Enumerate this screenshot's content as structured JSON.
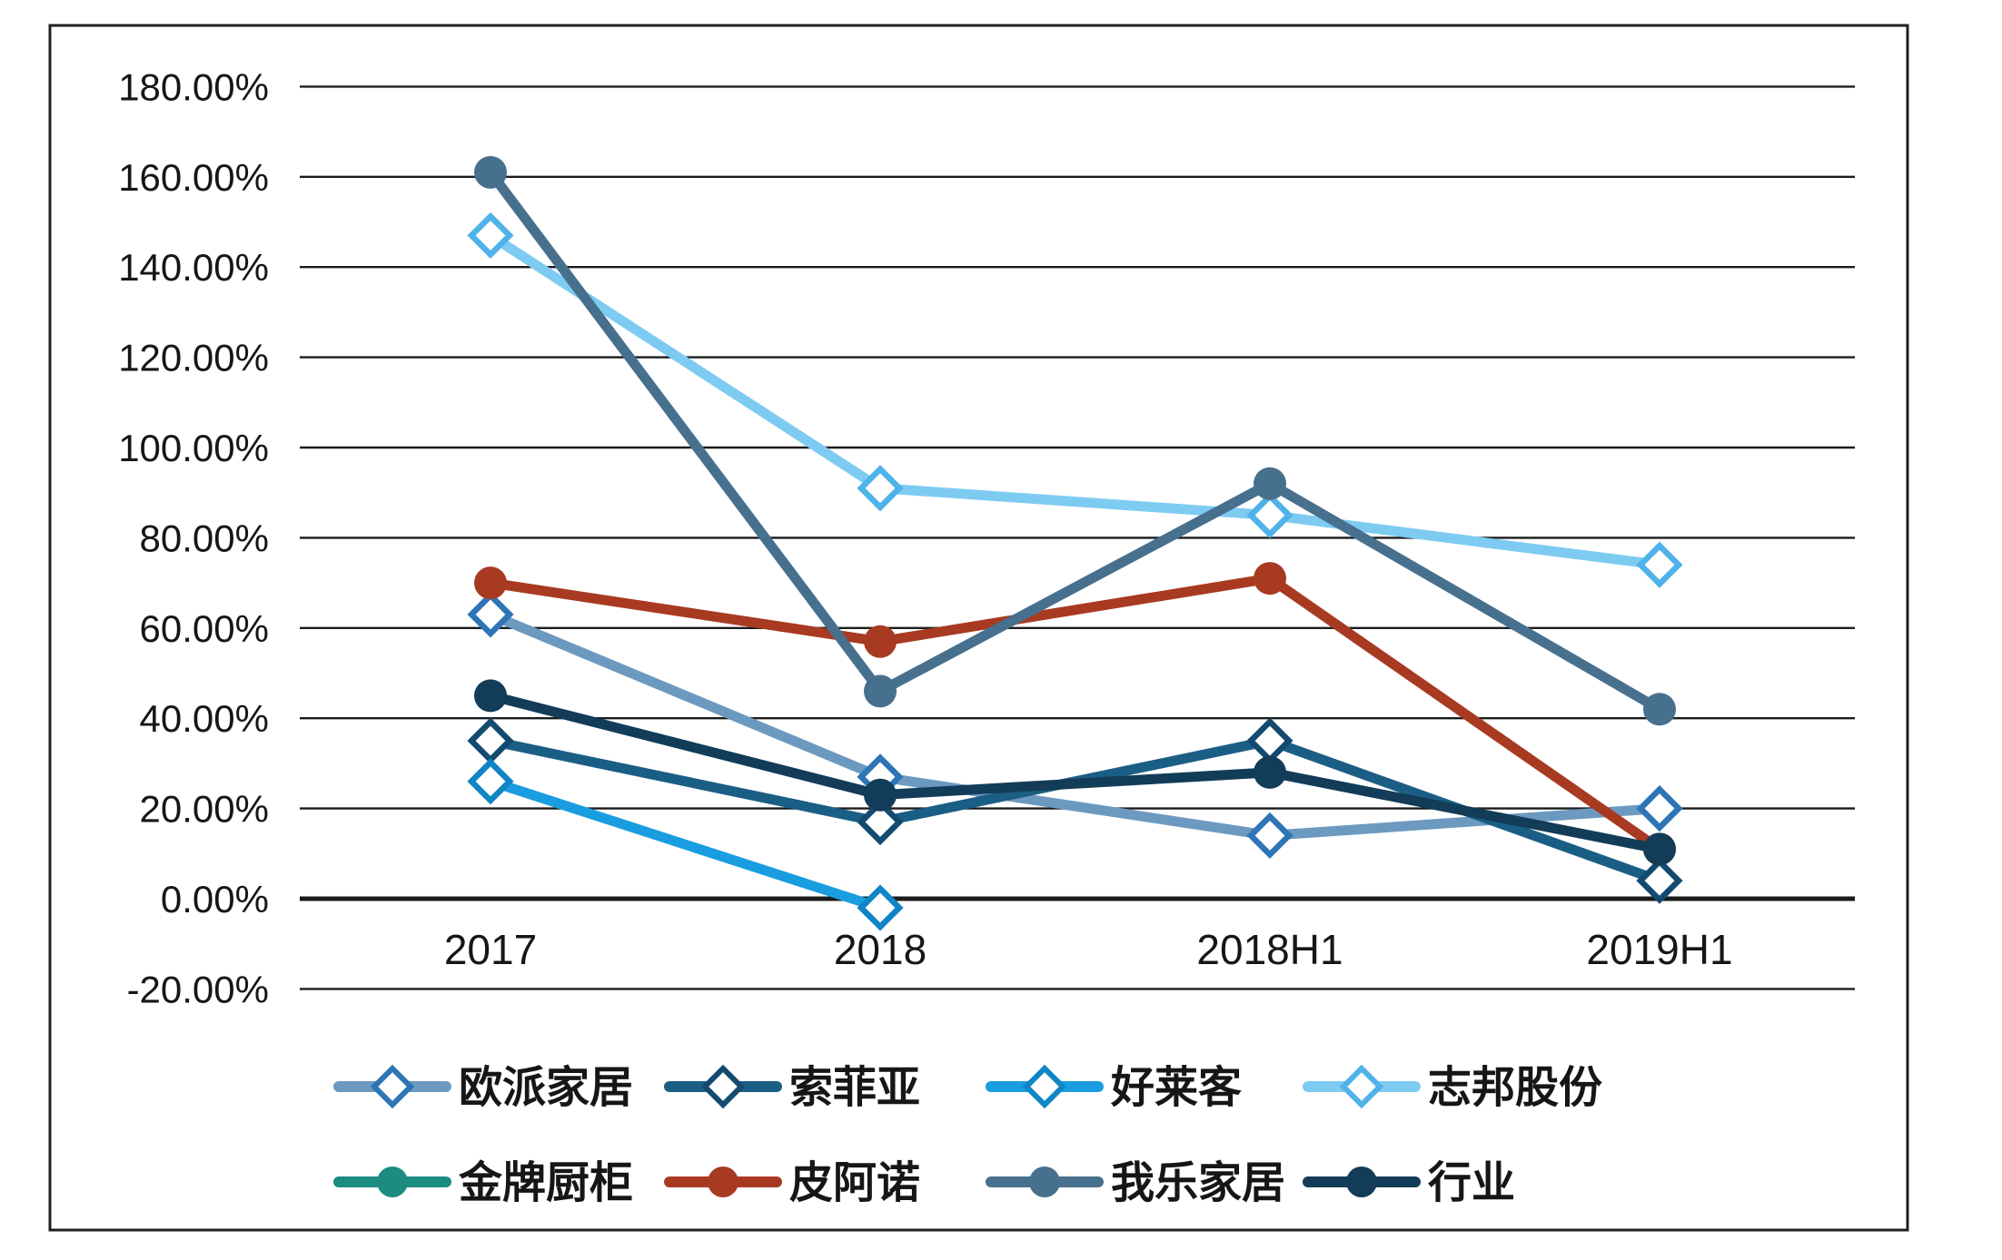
{
  "chart_data": {
    "type": "line",
    "title": "",
    "categories": [
      "2017",
      "2018",
      "2018H1",
      "2019H1"
    ],
    "y_axis": {
      "tick_labels": [
        "180.00%",
        "160.00%",
        "140.00%",
        "120.00%",
        "100.00%",
        "80.00%",
        "60.00%",
        "40.00%",
        "20.00%",
        "0.00%",
        "-20.00%"
      ],
      "tick_values": [
        180,
        160,
        140,
        120,
        100,
        80,
        60,
        40,
        20,
        0,
        -20
      ],
      "ylim": [
        -20,
        180
      ],
      "unit": "%"
    },
    "grid": true,
    "legend_position": "bottom",
    "series": [
      {
        "id": "oppein",
        "name": "欧派家居",
        "marker": "diamond",
        "color": "#6C99C0",
        "marker_stroke": "#2E75B6",
        "values": [
          63,
          27,
          14,
          20
        ]
      },
      {
        "id": "suofeiya",
        "name": "索菲亚",
        "marker": "diamond",
        "color": "#1B5E85",
        "marker_stroke": "#134B70",
        "values": [
          35,
          17,
          35,
          4
        ]
      },
      {
        "id": "holike",
        "name": "好莱客",
        "marker": "diamond",
        "color": "#199DE0",
        "marker_stroke": "#0F85C6",
        "values": [
          26,
          -2,
          null,
          null
        ]
      },
      {
        "id": "zbom",
        "name": "志邦股份",
        "marker": "diamond",
        "color": "#7ECBF2",
        "marker_stroke": "#4FB2E8",
        "values": [
          147,
          91,
          85,
          74
        ]
      },
      {
        "id": "goldhome",
        "name": "金牌厨柜",
        "marker": "circle",
        "color": "#1C8C80",
        "marker_stroke": "#1C8C80",
        "values": [
          null,
          null,
          null,
          null
        ]
      },
      {
        "id": "piano",
        "name": "皮阿诺",
        "marker": "circle",
        "color": "#A83A22",
        "marker_stroke": "#A83A22",
        "values": [
          70,
          57,
          71,
          11
        ]
      },
      {
        "id": "wole",
        "name": "我乐家居",
        "marker": "circle",
        "color": "#47708E",
        "marker_stroke": "#47708E",
        "values": [
          161,
          46,
          92,
          42
        ]
      },
      {
        "id": "industry",
        "name": "行业",
        "marker": "circle",
        "color": "#123C57",
        "marker_stroke": "#123C57",
        "values": [
          45,
          23,
          28,
          11
        ]
      }
    ]
  }
}
